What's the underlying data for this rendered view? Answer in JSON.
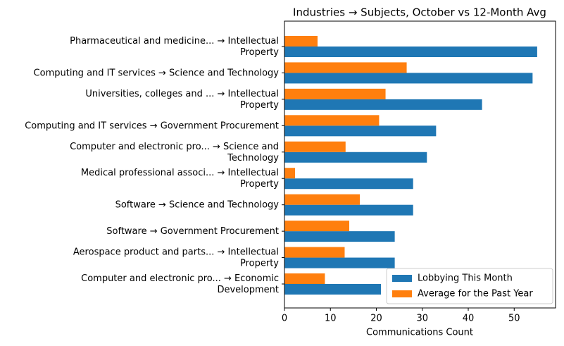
{
  "chart_data": {
    "type": "hbar",
    "title": "Industries → Subjects, October vs 12-Month Avg",
    "xlabel": "Communications Count",
    "categories": [
      "Pharmaceutical and medicine... → Intellectual\nProperty",
      "Computing and IT services → Science and Technology",
      "Universities, colleges and ... → Intellectual\nProperty",
      "Computing and IT services → Government Procurement",
      "Computer and electronic pro... → Science and\nTechnology",
      "Medical professional associ... → Intellectual\nProperty",
      "Software → Science and Technology",
      "Software → Government Procurement",
      "Aerospace product and parts... → Intellectual\nProperty",
      "Computer and electronic pro... → Economic\nDevelopment"
    ],
    "series": [
      {
        "name": "Lobbying This Month",
        "color": "#1f77b4",
        "values": [
          55,
          54,
          43,
          33,
          31,
          28,
          28,
          24,
          24,
          21
        ]
      },
      {
        "name": "Average for the Past Year",
        "color": "#ff7f0e",
        "values": [
          7.2,
          26.6,
          22,
          20.6,
          13.3,
          2.3,
          16.4,
          14.1,
          13.1,
          8.8
        ]
      }
    ],
    "xlim": [
      0,
      59
    ],
    "xticks": [
      0,
      10,
      20,
      30,
      40,
      50
    ],
    "legend": "lower right"
  }
}
